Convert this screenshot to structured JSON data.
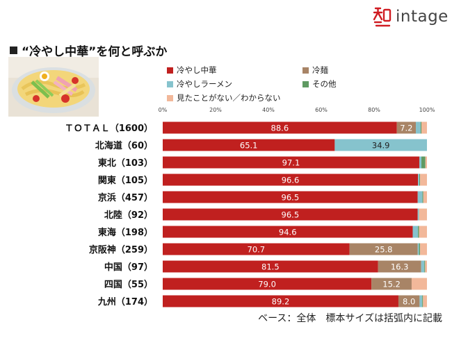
{
  "brand": {
    "name": "intage"
  },
  "title": "“冷やし中華”を何と呼ぶか",
  "footnote": "ベース：全体　標本サイズは括弧内に記載",
  "colors": {
    "reishi_chuka": "#c0201f",
    "reimen": "#a88466",
    "hiyashi_ramen": "#86c3cd",
    "other": "#5f9a62",
    "unknown": "#f2b89a",
    "brand_red": "#d01c22"
  },
  "chart_data": {
    "type": "bar",
    "orientation": "horizontal",
    "stacked": true,
    "percent_axis": true,
    "xlim": [
      0,
      100
    ],
    "xticks": [
      "0%",
      "20%",
      "40%",
      "60%",
      "80%",
      "100%"
    ],
    "legend_position": "top",
    "categories": [
      "ＴＯＴＡＬ（1600）",
      "北海道（60）",
      "東北（103）",
      "関東（105）",
      "京浜（457）",
      "北陸（92）",
      "東海（198）",
      "京阪神（259）",
      "中国（97）",
      "四国（55）",
      "九州（174）"
    ],
    "series": [
      {
        "name": "冷やし中華",
        "color": "#c0201f",
        "label_color": "#ffffff",
        "values": [
          88.6,
          65.1,
          97.1,
          96.6,
          96.5,
          96.5,
          94.6,
          70.7,
          81.5,
          79.0,
          89.2
        ],
        "labels": [
          "88.6",
          "65.1",
          "97.1",
          "96.6",
          "96.5",
          "96.5",
          "94.6",
          "70.7",
          "81.5",
          "79.0",
          "89.2"
        ]
      },
      {
        "name": "冷麺",
        "color": "#a88466",
        "label_color": "#ffffff",
        "values": [
          7.2,
          0,
          0,
          0,
          0,
          0,
          0,
          25.8,
          16.3,
          15.2,
          8.0
        ],
        "labels": [
          "7.2",
          "",
          "",
          "",
          "",
          "",
          "",
          "25.8",
          "16.3",
          "15.2",
          "8.0"
        ]
      },
      {
        "name": "冷やしラーメン",
        "color": "#86c3cd",
        "label_color": "#222222",
        "values": [
          1.8,
          34.9,
          0.8,
          0.5,
          1.8,
          0.5,
          2.0,
          0.5,
          1.2,
          0,
          1.0
        ],
        "labels": [
          "",
          "34.9",
          "",
          "",
          "",
          "",
          "",
          "",
          "",
          "",
          ""
        ]
      },
      {
        "name": "その他",
        "color": "#5f9a62",
        "label_color": "#ffffff",
        "values": [
          0.3,
          0,
          1.5,
          0.3,
          0.3,
          0,
          0.4,
          0.4,
          0.3,
          0,
          0.3
        ],
        "labels": [
          "",
          "",
          "",
          "",
          "",
          "",
          "",
          "",
          "",
          "",
          ""
        ]
      },
      {
        "name": "見たことがない／わからない",
        "color": "#f2b89a",
        "label_color": "#222222",
        "values": [
          2.1,
          0,
          0.6,
          2.6,
          1.4,
          3.0,
          3.0,
          2.6,
          0.7,
          5.8,
          1.5
        ],
        "labels": [
          "",
          "",
          "",
          "",
          "",
          "",
          "",
          "",
          "",
          "",
          ""
        ]
      }
    ]
  }
}
